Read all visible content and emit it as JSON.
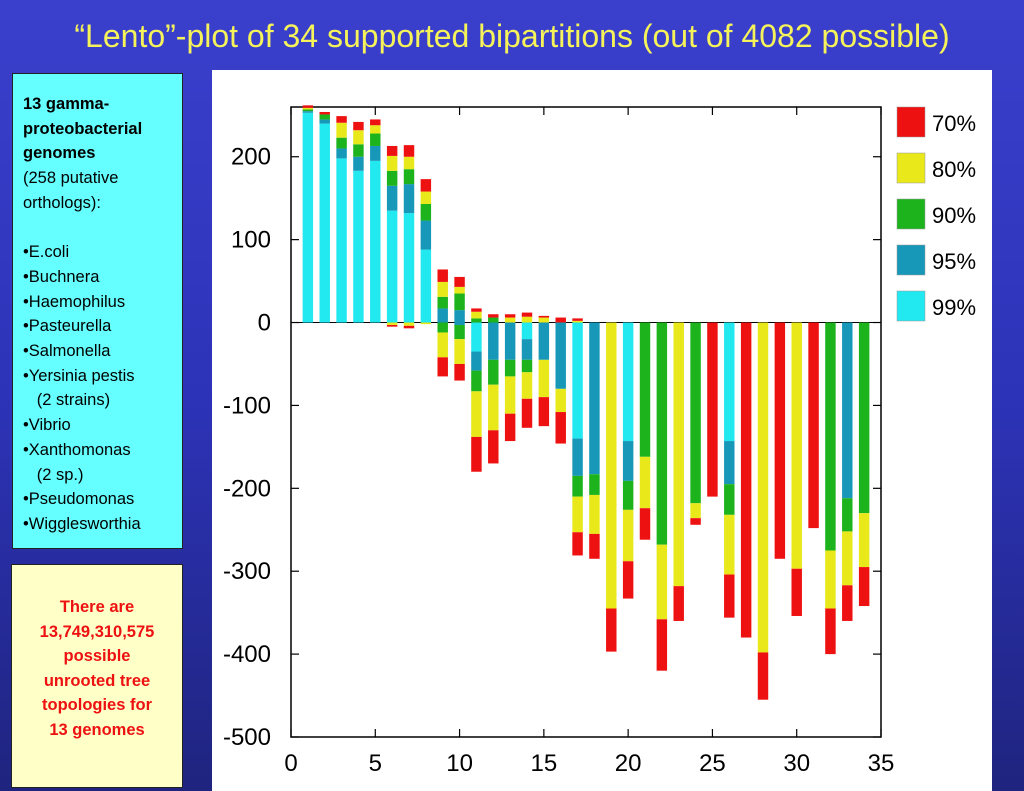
{
  "title": "“Lento”-plot of 34 supported bipartitions (out of 4082 possible)",
  "info_box": {
    "heading_lines": [
      "13 gamma-",
      "proteobacterial",
      "genomes"
    ],
    "sub_lines": [
      "(258 putative",
      "orthologs):"
    ],
    "genomes": [
      "•E.coli",
      "•Buchnera",
      "•Haemophilus",
      "•Pasteurella",
      "•Salmonella",
      "•Yersinia pestis",
      "  (2 strains)",
      "•Vibrio",
      "•Xanthomonas",
      "  (2 sp.)",
      "•Pseudomonas",
      "•Wigglesworthia"
    ]
  },
  "note_box": {
    "lines": [
      "There are",
      "13,749,310,575",
      "possible",
      "unrooted tree",
      "topologies for",
      "13 genomes"
    ]
  },
  "chart_data": {
    "type": "bar",
    "stacked": true,
    "xlim": [
      0,
      35
    ],
    "ylim": [
      -500,
      260
    ],
    "xticks": [
      0,
      5,
      10,
      15,
      20,
      25,
      30,
      35
    ],
    "yticks": [
      200,
      100,
      0,
      -100,
      -200,
      -300,
      -400,
      -500
    ],
    "legend_position": "right",
    "grid": false,
    "series": [
      {
        "name": "99%",
        "color": "#22e8f0"
      },
      {
        "name": "95%",
        "color": "#1898b8"
      },
      {
        "name": "90%",
        "color": "#1db31d"
      },
      {
        "name": "80%",
        "color": "#e8e81a"
      },
      {
        "name": "70%",
        "color": "#ee1111"
      }
    ],
    "bars": [
      {
        "x": 1,
        "pos": [
          253,
          2,
          2,
          2,
          3
        ],
        "neg": [
          0,
          0,
          0,
          0,
          0
        ]
      },
      {
        "x": 2,
        "pos": [
          240,
          5,
          6,
          0,
          3
        ],
        "neg": [
          0,
          0,
          0,
          0,
          0
        ]
      },
      {
        "x": 3,
        "pos": [
          198,
          12,
          13,
          18,
          8
        ],
        "neg": [
          0,
          0,
          0,
          0,
          0
        ]
      },
      {
        "x": 4,
        "pos": [
          183,
          17,
          15,
          17,
          10
        ],
        "neg": [
          0,
          0,
          0,
          0,
          0
        ]
      },
      {
        "x": 5,
        "pos": [
          195,
          18,
          15,
          10,
          7
        ],
        "neg": [
          0,
          0,
          0,
          0,
          0
        ]
      },
      {
        "x": 6,
        "pos": [
          135,
          30,
          18,
          18,
          12
        ],
        "neg": [
          0,
          0,
          0,
          3,
          2
        ]
      },
      {
        "x": 7,
        "pos": [
          132,
          35,
          18,
          15,
          14
        ],
        "neg": [
          0,
          0,
          0,
          4,
          3
        ]
      },
      {
        "x": 8,
        "pos": [
          88,
          35,
          20,
          15,
          15
        ],
        "neg": [
          0,
          0,
          0,
          2,
          0
        ]
      },
      {
        "x": 9,
        "pos": [
          0,
          17,
          14,
          18,
          15
        ],
        "neg": [
          0,
          0,
          12,
          30,
          23
        ]
      },
      {
        "x": 10,
        "pos": [
          0,
          15,
          20,
          8,
          12
        ],
        "neg": [
          0,
          3,
          17,
          30,
          20
        ]
      },
      {
        "x": 11,
        "pos": [
          0,
          0,
          5,
          8,
          4
        ],
        "neg": [
          35,
          23,
          25,
          55,
          42
        ]
      },
      {
        "x": 12,
        "pos": [
          0,
          0,
          6,
          0,
          4
        ],
        "neg": [
          0,
          45,
          30,
          55,
          40
        ]
      },
      {
        "x": 13,
        "pos": [
          0,
          0,
          0,
          6,
          4
        ],
        "neg": [
          0,
          45,
          20,
          45,
          33
        ]
      },
      {
        "x": 14,
        "pos": [
          0,
          0,
          0,
          7,
          5
        ],
        "neg": [
          20,
          25,
          15,
          32,
          35
        ]
      },
      {
        "x": 15,
        "pos": [
          0,
          0,
          0,
          6,
          2
        ],
        "neg": [
          0,
          45,
          0,
          45,
          35
        ]
      },
      {
        "x": 16,
        "pos": [
          0,
          0,
          0,
          0,
          6
        ],
        "neg": [
          0,
          80,
          0,
          28,
          38
        ]
      },
      {
        "x": 17,
        "pos": [
          0,
          0,
          0,
          2,
          3
        ],
        "neg": [
          140,
          45,
          25,
          43,
          28
        ]
      },
      {
        "x": 18,
        "pos": [
          0,
          0,
          0,
          0,
          0
        ],
        "neg": [
          0,
          183,
          25,
          47,
          30
        ]
      },
      {
        "x": 19,
        "pos": [
          0,
          0,
          0,
          0,
          0
        ],
        "neg": [
          0,
          0,
          0,
          345,
          52
        ]
      },
      {
        "x": 20,
        "pos": [
          0,
          0,
          0,
          0,
          0
        ],
        "neg": [
          143,
          48,
          35,
          62,
          45
        ]
      },
      {
        "x": 21,
        "pos": [
          0,
          0,
          0,
          0,
          0
        ],
        "neg": [
          0,
          0,
          162,
          62,
          38
        ]
      },
      {
        "x": 22,
        "pos": [
          0,
          0,
          0,
          0,
          0
        ],
        "neg": [
          0,
          0,
          268,
          90,
          62
        ]
      },
      {
        "x": 23,
        "pos": [
          0,
          0,
          0,
          0,
          0
        ],
        "neg": [
          0,
          0,
          0,
          318,
          42
        ]
      },
      {
        "x": 24,
        "pos": [
          0,
          0,
          0,
          0,
          0
        ],
        "neg": [
          0,
          0,
          218,
          18,
          8
        ]
      },
      {
        "x": 25,
        "pos": [
          0,
          0,
          0,
          0,
          0
        ],
        "neg": [
          0,
          0,
          0,
          0,
          210
        ]
      },
      {
        "x": 26,
        "pos": [
          0,
          0,
          0,
          0,
          0
        ],
        "neg": [
          143,
          52,
          37,
          72,
          52
        ]
      },
      {
        "x": 27,
        "pos": [
          0,
          0,
          0,
          0,
          0
        ],
        "neg": [
          0,
          0,
          0,
          0,
          380
        ]
      },
      {
        "x": 28,
        "pos": [
          0,
          0,
          0,
          0,
          0
        ],
        "neg": [
          0,
          0,
          0,
          398,
          57
        ]
      },
      {
        "x": 29,
        "pos": [
          0,
          0,
          0,
          0,
          0
        ],
        "neg": [
          0,
          0,
          0,
          0,
          285
        ]
      },
      {
        "x": 30,
        "pos": [
          0,
          0,
          0,
          0,
          0
        ],
        "neg": [
          0,
          0,
          0,
          297,
          57
        ]
      },
      {
        "x": 31,
        "pos": [
          0,
          0,
          0,
          0,
          0
        ],
        "neg": [
          0,
          0,
          0,
          0,
          248
        ]
      },
      {
        "x": 32,
        "pos": [
          0,
          0,
          0,
          0,
          0
        ],
        "neg": [
          0,
          0,
          275,
          70,
          55
        ]
      },
      {
        "x": 33,
        "pos": [
          0,
          0,
          0,
          0,
          0
        ],
        "neg": [
          0,
          212,
          40,
          65,
          43
        ]
      },
      {
        "x": 34,
        "pos": [
          0,
          0,
          0,
          0,
          0
        ],
        "neg": [
          0,
          0,
          230,
          65,
          47
        ]
      }
    ]
  }
}
